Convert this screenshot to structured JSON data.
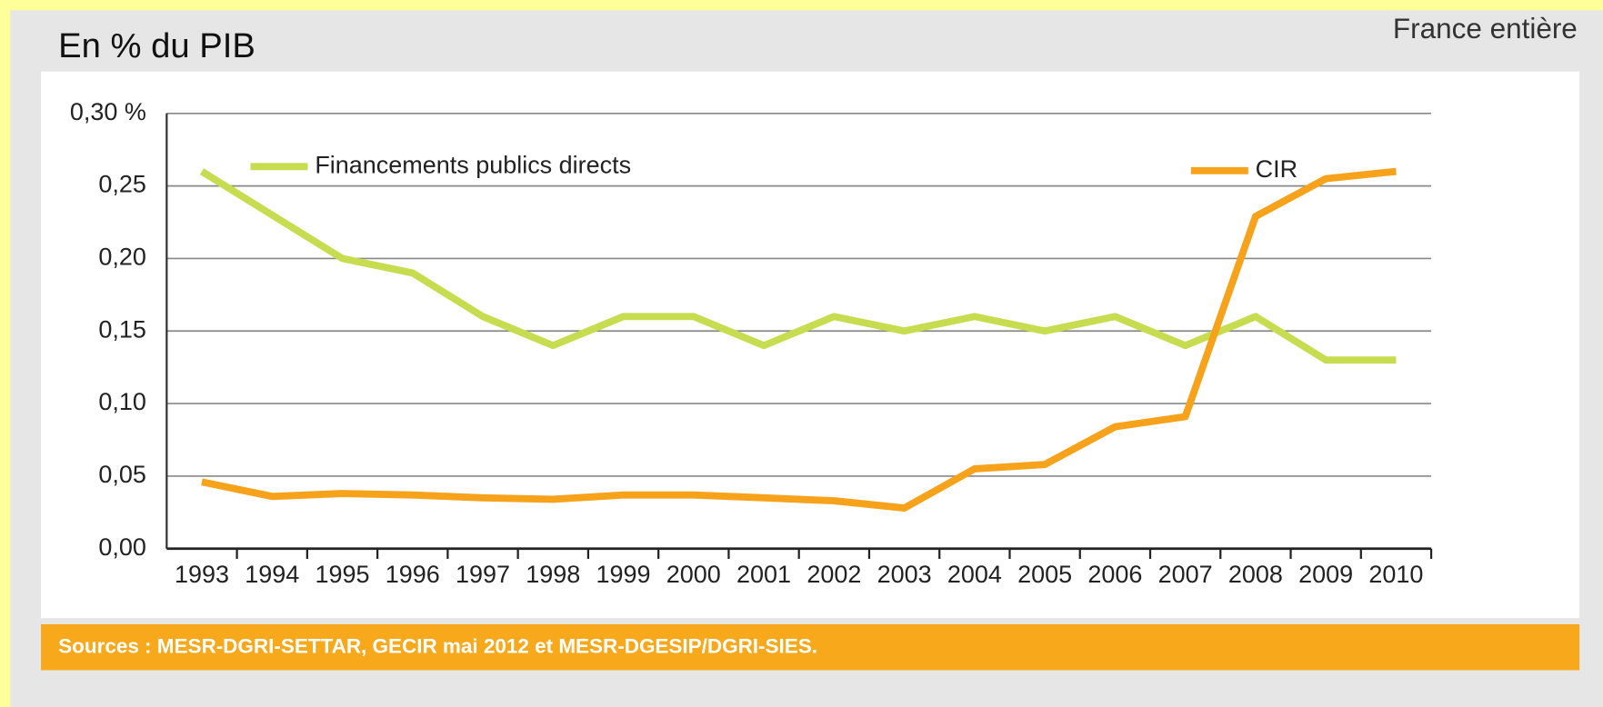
{
  "chart_data": {
    "type": "line",
    "ylabel": "En % du PIB",
    "annotation": "France entière",
    "source": "Sources : MESR-DGRI-SETTAR, GECIR mai 2012 et MESR-DGESIP/DGRI-SIES.",
    "categories": [
      "1993",
      "1994",
      "1995",
      "1996",
      "1997",
      "1998",
      "1999",
      "2000",
      "2001",
      "2002",
      "2003",
      "2004",
      "2005",
      "2006",
      "2007",
      "2008",
      "2009",
      "2010"
    ],
    "series": [
      {
        "name": "Financements publics directs",
        "color": "#c8dc50",
        "values": [
          0.26,
          0.23,
          0.2,
          0.19,
          0.16,
          0.14,
          0.16,
          0.16,
          0.14,
          0.16,
          0.15,
          0.16,
          0.15,
          0.16,
          0.14,
          0.16,
          0.13,
          0.13
        ]
      },
      {
        "name": "CIR",
        "color": "#f7a21b",
        "values": [
          0.046,
          0.036,
          0.038,
          0.037,
          0.035,
          0.034,
          0.037,
          0.037,
          0.035,
          0.033,
          0.028,
          0.055,
          0.058,
          0.084,
          0.091,
          0.229,
          0.255,
          0.26
        ]
      }
    ],
    "ylim": [
      0,
      0.3
    ],
    "yticks": [
      {
        "value": 0,
        "label": "0,00"
      },
      {
        "value": 0.05,
        "label": "0,05"
      },
      {
        "value": 0.1,
        "label": "0,10"
      },
      {
        "value": 0.15,
        "label": "0,15"
      },
      {
        "value": 0.2,
        "label": "0,20"
      },
      {
        "value": 0.25,
        "label": "0,25"
      },
      {
        "value": 0.3,
        "label": "0,30 %"
      }
    ],
    "grid": true
  }
}
